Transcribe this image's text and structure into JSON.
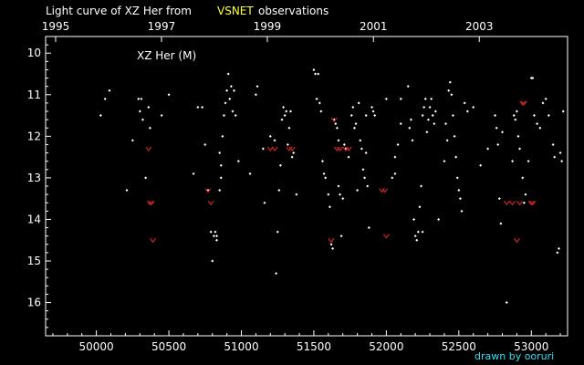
{
  "chart_data": {
    "type": "scatter",
    "title_prefix": "Light curve of XZ Her from",
    "title_highlight": "VSNET",
    "title_suffix": "observations",
    "star_label": "XZ Her (M)",
    "credit": "drawn by ooruri",
    "xlim": [
      49650,
      53250
    ],
    "ylim": [
      16.8,
      9.6
    ],
    "x_ticks": [
      50000,
      50500,
      51000,
      51500,
      52000,
      52500,
      53000
    ],
    "y_ticks": [
      10,
      11,
      12,
      13,
      14,
      15,
      16
    ],
    "year_ticks": [
      {
        "label": "1995",
        "x": 49719
      },
      {
        "label": "1997",
        "x": 50449
      },
      {
        "label": "1999",
        "x": 51179
      },
      {
        "label": "2001",
        "x": 51911
      },
      {
        "label": "2003",
        "x": 52641
      }
    ],
    "colors": {
      "background": "#000000",
      "frame": "#ffffff",
      "points": "#ffffff",
      "upper_limits": "#cc2222",
      "highlight": "#ffff33",
      "credit": "#33ddee"
    },
    "series": [
      {
        "name": "observations",
        "marker": "dot",
        "points": [
          [
            50030,
            11.5
          ],
          [
            50060,
            11.1
          ],
          [
            50090,
            10.9
          ],
          [
            50210,
            13.3
          ],
          [
            50250,
            12.1
          ],
          [
            50290,
            11.1
          ],
          [
            50300,
            11.4
          ],
          [
            50310,
            11.1
          ],
          [
            50320,
            11.6
          ],
          [
            50340,
            13.0
          ],
          [
            50360,
            11.3
          ],
          [
            50370,
            11.8
          ],
          [
            50450,
            11.5
          ],
          [
            50500,
            11.0
          ],
          [
            50670,
            12.9
          ],
          [
            50700,
            11.3
          ],
          [
            50730,
            11.3
          ],
          [
            50750,
            12.2
          ],
          [
            50770,
            13.3
          ],
          [
            50790,
            14.3
          ],
          [
            50800,
            15.0
          ],
          [
            50810,
            14.4
          ],
          [
            50820,
            14.3
          ],
          [
            50830,
            14.4
          ],
          [
            50830,
            14.5
          ],
          [
            50850,
            12.4
          ],
          [
            50850,
            13.3
          ],
          [
            50860,
            12.7
          ],
          [
            50860,
            13.0
          ],
          [
            50870,
            12.0
          ],
          [
            50880,
            11.5
          ],
          [
            50890,
            11.2
          ],
          [
            50900,
            10.9
          ],
          [
            50910,
            10.5
          ],
          [
            50920,
            11.1
          ],
          [
            50930,
            10.8
          ],
          [
            50940,
            11.4
          ],
          [
            50950,
            10.9
          ],
          [
            50960,
            11.5
          ],
          [
            50980,
            12.6
          ],
          [
            51060,
            12.9
          ],
          [
            51100,
            11.0
          ],
          [
            51110,
            10.8
          ],
          [
            51150,
            12.3
          ],
          [
            51160,
            13.6
          ],
          [
            51200,
            12.0
          ],
          [
            51230,
            12.1
          ],
          [
            51240,
            15.3
          ],
          [
            51250,
            14.3
          ],
          [
            51260,
            13.3
          ],
          [
            51270,
            12.7
          ],
          [
            51280,
            11.6
          ],
          [
            51290,
            11.3
          ],
          [
            51300,
            11.5
          ],
          [
            51310,
            11.4
          ],
          [
            51320,
            12.2
          ],
          [
            51330,
            11.8
          ],
          [
            51340,
            11.4
          ],
          [
            51350,
            12.5
          ],
          [
            51360,
            12.4
          ],
          [
            51380,
            13.4
          ],
          [
            51500,
            10.4
          ],
          [
            51510,
            10.5
          ],
          [
            51520,
            11.1
          ],
          [
            51530,
            10.5
          ],
          [
            51540,
            11.2
          ],
          [
            51550,
            11.4
          ],
          [
            51560,
            12.6
          ],
          [
            51570,
            12.9
          ],
          [
            51580,
            13.0
          ],
          [
            51600,
            13.4
          ],
          [
            51610,
            13.7
          ],
          [
            51620,
            14.6
          ],
          [
            51630,
            14.7
          ],
          [
            51640,
            11.6
          ],
          [
            51650,
            11.7
          ],
          [
            51660,
            11.8
          ],
          [
            51670,
            12.1
          ],
          [
            51670,
            13.2
          ],
          [
            51680,
            13.4
          ],
          [
            51690,
            14.4
          ],
          [
            51700,
            13.5
          ],
          [
            51710,
            12.2
          ],
          [
            51720,
            12.3
          ],
          [
            51740,
            12.5
          ],
          [
            51760,
            11.5
          ],
          [
            51770,
            11.3
          ],
          [
            51780,
            11.8
          ],
          [
            51790,
            11.7
          ],
          [
            51800,
            13.3
          ],
          [
            51810,
            11.2
          ],
          [
            51820,
            12.1
          ],
          [
            51830,
            12.3
          ],
          [
            51840,
            12.8
          ],
          [
            51850,
            13.0
          ],
          [
            51860,
            11.5
          ],
          [
            51860,
            12.4
          ],
          [
            51870,
            13.2
          ],
          [
            51880,
            14.2
          ],
          [
            51900,
            11.3
          ],
          [
            51910,
            11.4
          ],
          [
            51920,
            11.5
          ],
          [
            52000,
            11.1
          ],
          [
            52040,
            13.0
          ],
          [
            52060,
            12.5
          ],
          [
            52060,
            12.9
          ],
          [
            52080,
            12.2
          ],
          [
            52100,
            11.1
          ],
          [
            52100,
            11.7
          ],
          [
            52150,
            10.8
          ],
          [
            52160,
            11.8
          ],
          [
            52170,
            11.6
          ],
          [
            52180,
            12.1
          ],
          [
            52190,
            14.0
          ],
          [
            52200,
            14.4
          ],
          [
            52210,
            14.5
          ],
          [
            52220,
            14.3
          ],
          [
            52230,
            13.7
          ],
          [
            52240,
            13.2
          ],
          [
            52250,
            14.3
          ],
          [
            52250,
            11.5
          ],
          [
            52260,
            11.3
          ],
          [
            52270,
            11.1
          ],
          [
            52280,
            11.9
          ],
          [
            52290,
            11.6
          ],
          [
            52300,
            11.3
          ],
          [
            52310,
            11.1
          ],
          [
            52320,
            11.5
          ],
          [
            52330,
            11.7
          ],
          [
            52340,
            11.4
          ],
          [
            52360,
            14.0
          ],
          [
            52400,
            12.6
          ],
          [
            52410,
            11.7
          ],
          [
            52420,
            12.1
          ],
          [
            52430,
            10.9
          ],
          [
            52440,
            10.7
          ],
          [
            52450,
            11.0
          ],
          [
            52460,
            11.5
          ],
          [
            52470,
            12.0
          ],
          [
            52480,
            12.5
          ],
          [
            52490,
            13.0
          ],
          [
            52500,
            13.3
          ],
          [
            52510,
            13.5
          ],
          [
            52520,
            13.8
          ],
          [
            52540,
            11.2
          ],
          [
            52560,
            11.4
          ],
          [
            52600,
            11.3
          ],
          [
            52650,
            12.7
          ],
          [
            52700,
            12.3
          ],
          [
            52750,
            11.5
          ],
          [
            52760,
            11.8
          ],
          [
            52770,
            12.2
          ],
          [
            52780,
            13.5
          ],
          [
            52790,
            14.1
          ],
          [
            52800,
            11.9
          ],
          [
            52830,
            16.0
          ],
          [
            52870,
            12.6
          ],
          [
            52880,
            11.5
          ],
          [
            52890,
            11.6
          ],
          [
            52900,
            11.4
          ],
          [
            52910,
            12.0
          ],
          [
            52920,
            12.3
          ],
          [
            52940,
            13.0
          ],
          [
            52950,
            13.6
          ],
          [
            52960,
            13.4
          ],
          [
            52980,
            12.6
          ],
          [
            53000,
            10.6
          ],
          [
            53010,
            10.6
          ],
          [
            53020,
            11.5
          ],
          [
            53040,
            11.7
          ],
          [
            53060,
            11.8
          ],
          [
            53080,
            11.2
          ],
          [
            53100,
            11.1
          ],
          [
            53120,
            11.5
          ],
          [
            53150,
            12.2
          ],
          [
            53160,
            12.5
          ],
          [
            53180,
            14.8
          ],
          [
            53190,
            14.7
          ],
          [
            53200,
            12.4
          ],
          [
            53210,
            12.6
          ],
          [
            53220,
            11.4
          ]
        ]
      },
      {
        "name": "fainter-than",
        "marker": "v",
        "points": [
          [
            50360,
            12.3
          ],
          [
            50370,
            13.6
          ],
          [
            50380,
            13.6
          ],
          [
            50390,
            14.5
          ],
          [
            50770,
            13.3
          ],
          [
            50790,
            13.6
          ],
          [
            51200,
            12.3
          ],
          [
            51230,
            12.3
          ],
          [
            51330,
            12.3
          ],
          [
            51350,
            12.3
          ],
          [
            51620,
            14.5
          ],
          [
            51640,
            11.6
          ],
          [
            51660,
            12.3
          ],
          [
            51680,
            12.3
          ],
          [
            51720,
            12.3
          ],
          [
            51740,
            12.3
          ],
          [
            51970,
            13.3
          ],
          [
            51990,
            13.3
          ],
          [
            52000,
            14.4
          ],
          [
            52830,
            13.6
          ],
          [
            52870,
            13.6
          ],
          [
            52900,
            14.5
          ],
          [
            52920,
            13.6
          ],
          [
            52940,
            11.2
          ],
          [
            52950,
            11.2
          ],
          [
            53000,
            13.6
          ],
          [
            53010,
            13.6
          ]
        ]
      }
    ],
    "legend": "none",
    "grid": false
  }
}
